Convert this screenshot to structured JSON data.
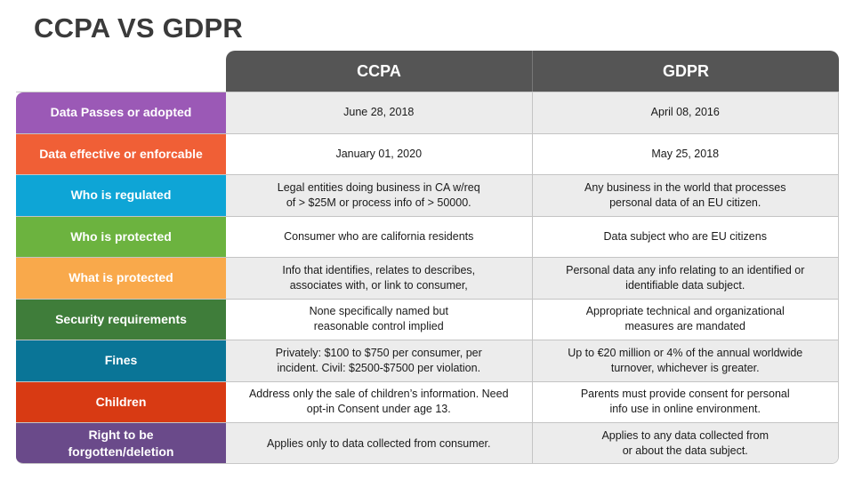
{
  "title": "CCPA VS GDPR",
  "columns": [
    "CCPA",
    "GDPR"
  ],
  "rows": [
    {
      "label": "Data Passes or adopted",
      "color": "#9b59b6",
      "ccpa": "June 28, 2018",
      "gdpr": "April 08, 2016"
    },
    {
      "label": "Data effective or enforcable",
      "color": "#f05f36",
      "ccpa": "January 01, 2020",
      "gdpr": "May 25, 2018"
    },
    {
      "label": "Who is regulated",
      "color": "#0ea5d6",
      "ccpa": "Legal entities doing business in CA w/req\nof > $25M or process info of > 50000.",
      "gdpr": "Any business in the world that processes\npersonal data of an EU citizen."
    },
    {
      "label": "Who is protected",
      "color": "#6cb33f",
      "ccpa": "Consumer who are california residents",
      "gdpr": "Data subject who are EU citizens"
    },
    {
      "label": "What is protected",
      "color": "#f9a94b",
      "ccpa": "Info that identifies, relates to describes,\nassociates with, or link to consumer,",
      "gdpr": "Personal data any info relating to an identified or\nidentifiable data subject."
    },
    {
      "label": "Security requirements",
      "color": "#3f7d3a",
      "ccpa": "None specifically named but\nreasonable control implied",
      "gdpr": "Appropriate technical and organizational\nmeasures are mandated"
    },
    {
      "label": "Fines",
      "color": "#0a7597",
      "ccpa": "Privately: $100 to $750 per consumer, per\nincident. Civil: $2500-$7500 per violation.",
      "gdpr": "Up to €20 million or 4% of the annual worldwide\nturnover, whichever is greater."
    },
    {
      "label": "Children",
      "color": "#d83a13",
      "ccpa": "Address only the sale of children’s information. Need\nopt-in Consent under age 13.",
      "gdpr": "Parents must provide consent for personal\ninfo use in online environment."
    },
    {
      "label": "Right to be\nforgotten/deletion",
      "color": "#6a4a8a",
      "ccpa": "Applies only to data collected from consumer.",
      "gdpr": "Applies to any data collected from\nor about the data subject."
    }
  ]
}
